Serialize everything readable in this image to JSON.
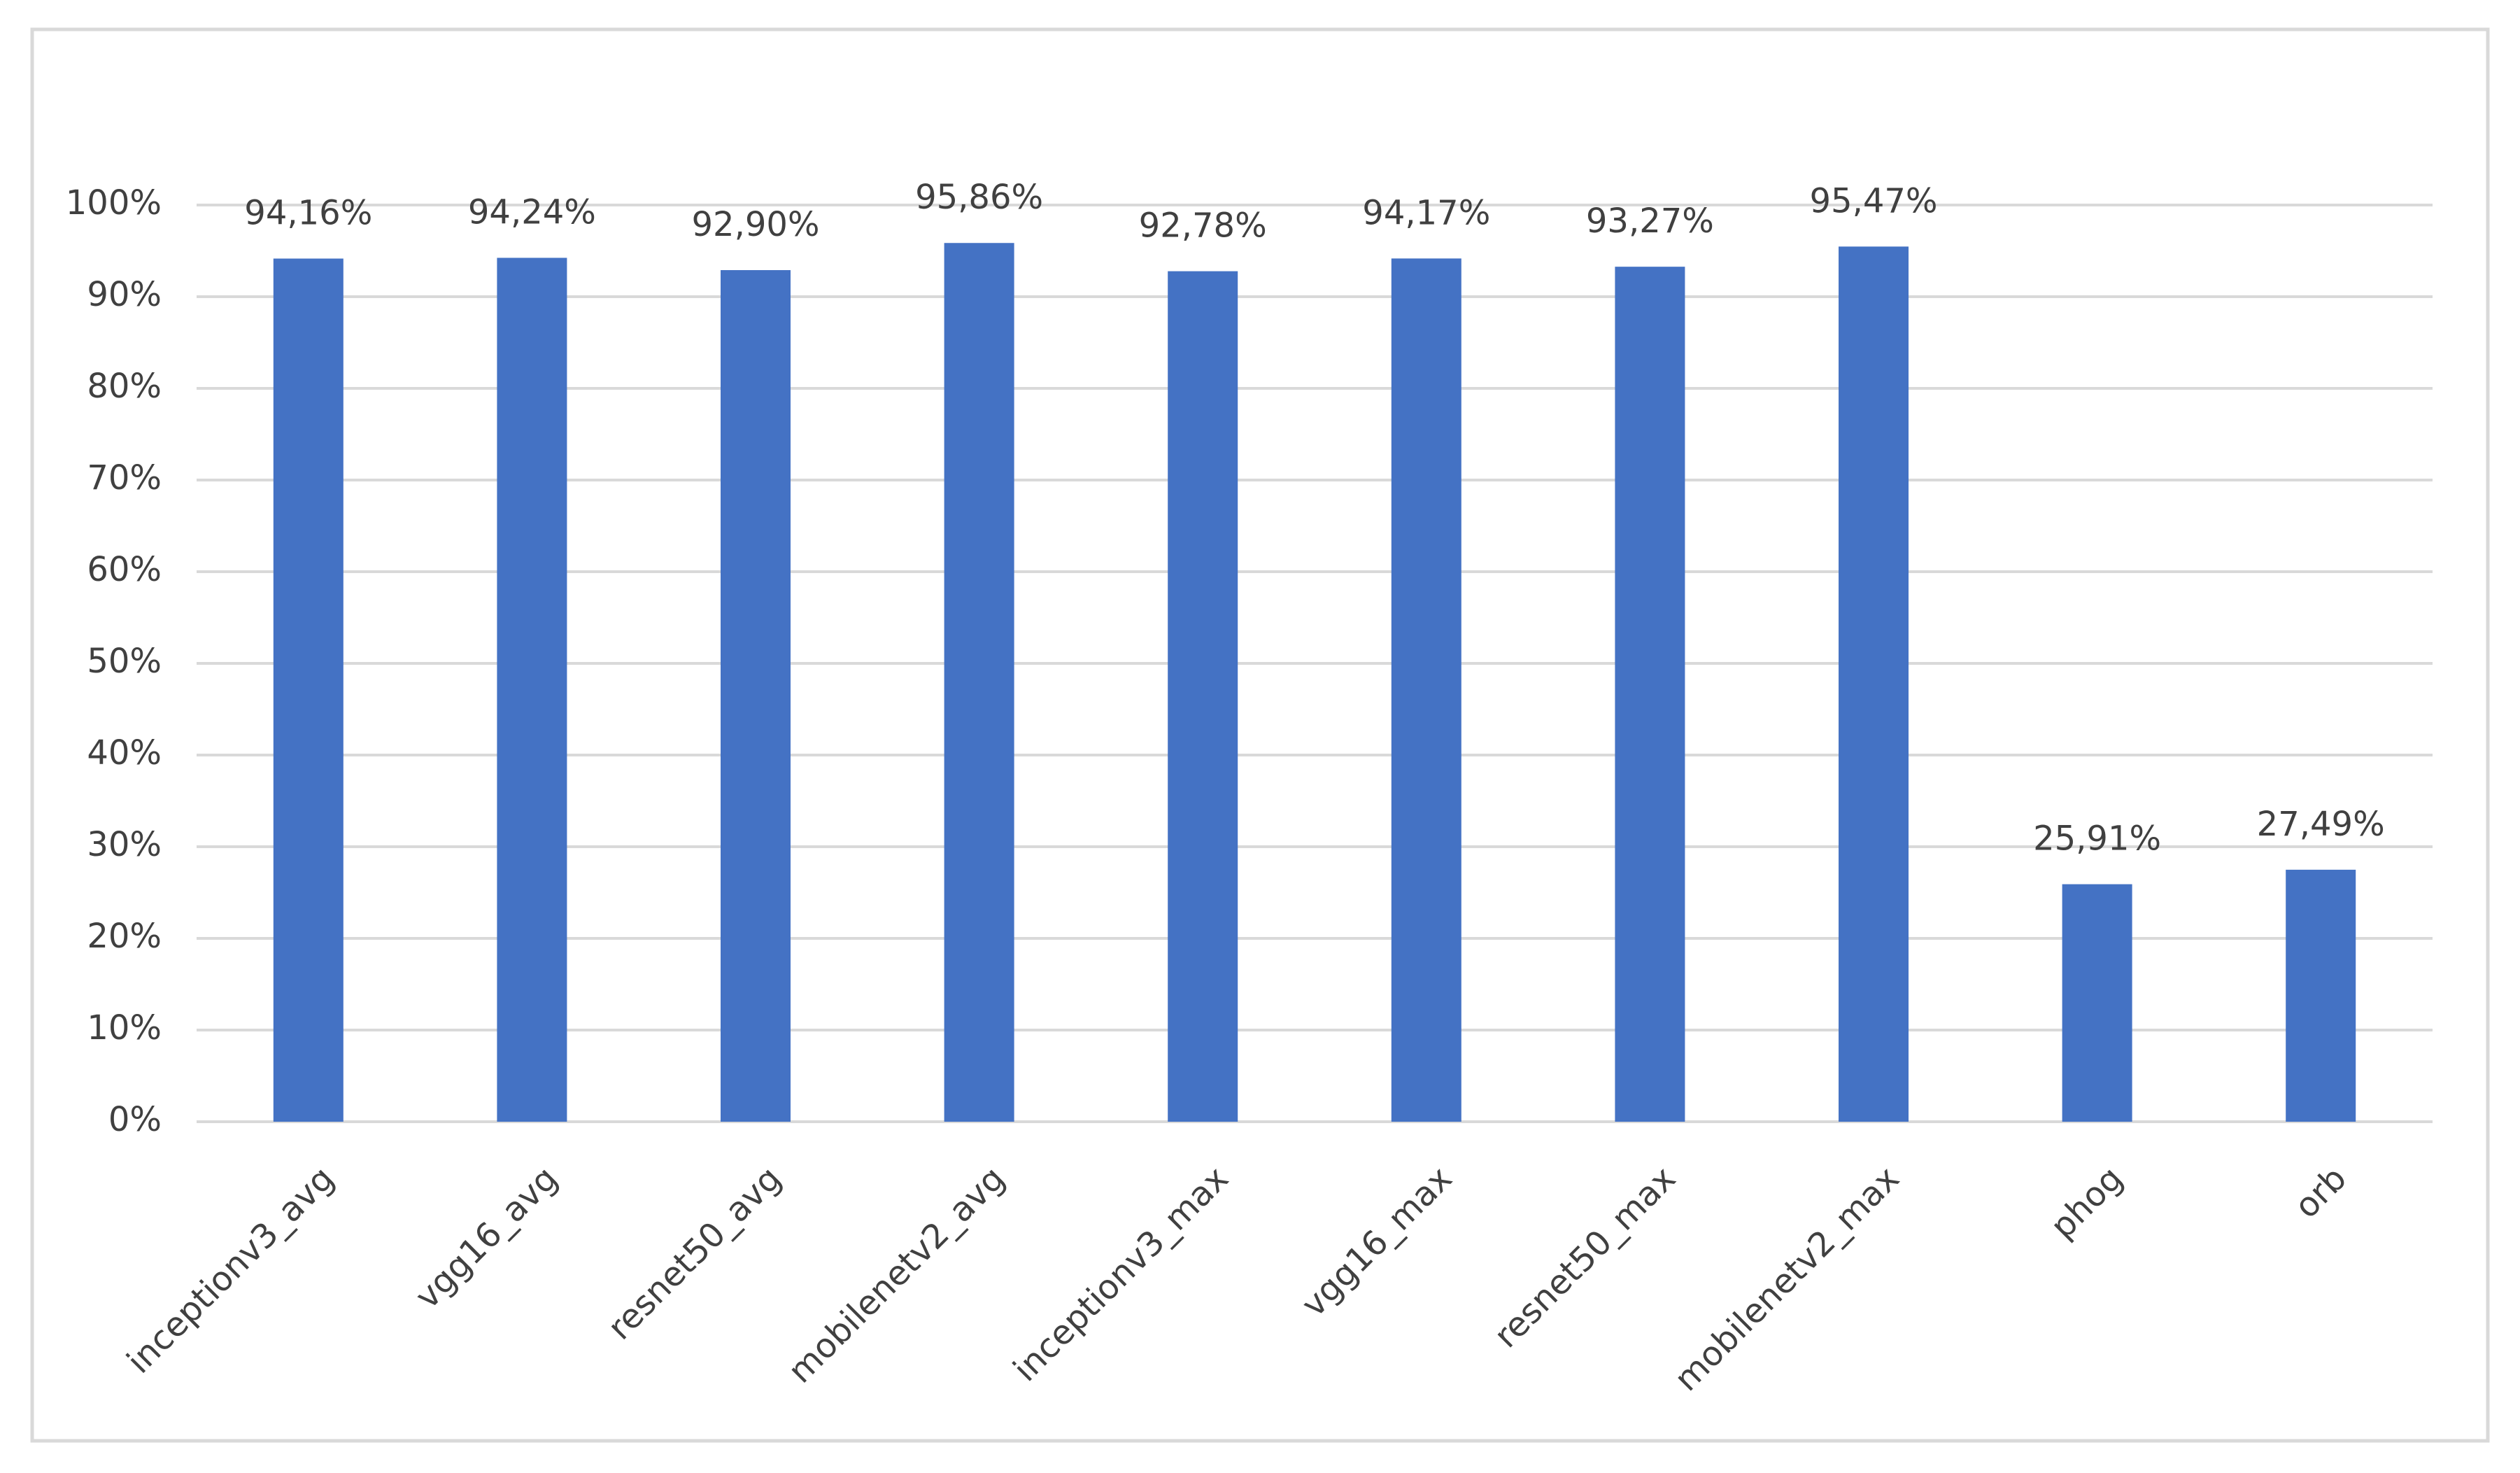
{
  "chart_data": {
    "type": "bar",
    "categories": [
      "inceptionv3_avg",
      "vgg16_avg",
      "resnet50_avg",
      "mobilenetv2_avg",
      "inceptionv3_max",
      "vgg16_max",
      "resnet50_max",
      "mobilenetv2_max",
      "phog",
      "orb"
    ],
    "values": [
      94.16,
      94.24,
      92.9,
      95.86,
      92.78,
      94.17,
      93.27,
      95.47,
      25.91,
      27.49
    ],
    "value_labels": [
      "94,16%",
      "94,24%",
      "92,90%",
      "95,86%",
      "92,78%",
      "94,17%",
      "93,27%",
      "95,47%",
      "25,91%",
      "27,49%"
    ],
    "color": "#4472c4",
    "ylim": [
      0,
      100
    ],
    "yticks": [
      {
        "value": 0,
        "label": "0%"
      },
      {
        "value": 10,
        "label": "10%"
      },
      {
        "value": 20,
        "label": "20%"
      },
      {
        "value": 30,
        "label": "30%"
      },
      {
        "value": 40,
        "label": "40%"
      },
      {
        "value": 50,
        "label": "50%"
      },
      {
        "value": 60,
        "label": "60%"
      },
      {
        "value": 70,
        "label": "70%"
      },
      {
        "value": 80,
        "label": "80%"
      },
      {
        "value": 90,
        "label": "90%"
      },
      {
        "value": 100,
        "label": "100%"
      }
    ],
    "grid": true
  }
}
